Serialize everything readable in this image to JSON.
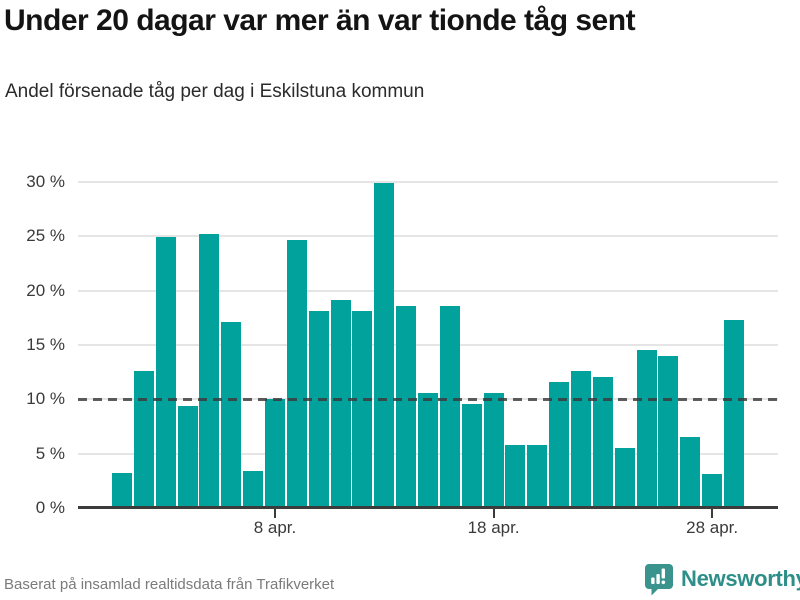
{
  "header": {
    "title": "Under 20 dagar var mer än var tionde tåg sent",
    "subtitle": "Andel försenade tåg per dag i Eskilstuna kommun"
  },
  "footer": {
    "source": "Baserat på insamlad realtidsdata från Trafikverket",
    "brand": "Newsworthy",
    "logo_icon": "bar-chart-speech-bubble-icon"
  },
  "colors": {
    "bar": "#00A29B",
    "grid": "#E5E5E5",
    "axis": "#3C3C3C",
    "reference_line": "#555555",
    "brand_teal": "#2E8F89",
    "title_text": "#141414",
    "tick_text": "#3A3A3A",
    "muted_text": "#7B7B7B"
  },
  "chart_data": {
    "type": "bar",
    "title": "Under 20 dagar var mer än var tionde tåg sent",
    "subtitle": "Andel försenade tåg per dag i Eskilstuna kommun",
    "unit": "%",
    "categories": [
      "1 apr.",
      "2 apr.",
      "3 apr.",
      "4 apr.",
      "5 apr.",
      "6 apr.",
      "7 apr.",
      "8 apr.",
      "9 apr.",
      "10 apr.",
      "11 apr.",
      "12 apr.",
      "13 apr.",
      "14 apr.",
      "15 apr.",
      "16 apr.",
      "17 apr.",
      "18 apr.",
      "19 apr.",
      "20 apr.",
      "21 apr.",
      "22 apr.",
      "23 apr.",
      "24 apr.",
      "25 apr.",
      "26 apr.",
      "27 apr.",
      "28 apr.",
      "29 apr."
    ],
    "values": [
      3.2,
      12.6,
      24.9,
      9.4,
      25.2,
      17.1,
      3.4,
      10.0,
      24.7,
      18.1,
      19.1,
      18.1,
      29.9,
      18.6,
      10.6,
      18.6,
      9.6,
      10.6,
      5.8,
      5.8,
      11.6,
      12.6,
      12.1,
      5.5,
      14.5,
      14.0,
      6.5,
      3.1,
      17.3
    ],
    "xlabel": "",
    "ylabel": "",
    "ylim": [
      0,
      30
    ],
    "yticks": [
      {
        "label": "30 %",
        "value": 30
      },
      {
        "label": "25 %",
        "value": 25
      },
      {
        "label": "20 %",
        "value": 20
      },
      {
        "label": "15 %",
        "value": 15
      },
      {
        "label": "10 %",
        "value": 10
      },
      {
        "label": "5 %",
        "value": 5
      },
      {
        "label": "0 %",
        "value": 0
      }
    ],
    "xticks": [
      {
        "label": "8 apr.",
        "day": 8
      },
      {
        "label": "18 apr.",
        "day": 18
      },
      {
        "label": "28 apr.",
        "day": 28
      }
    ],
    "reference_line": {
      "value": 10,
      "style": "dashed"
    },
    "grid": "horizontal",
    "legend": "none"
  }
}
